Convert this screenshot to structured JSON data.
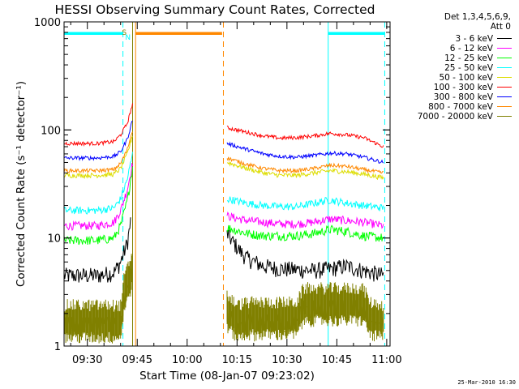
{
  "chart_data": {
    "type": "line",
    "title": "HESSI Observing Summary Count Rates, Corrected",
    "xlabel": "Start Time (08-Jan-07 09:23:02)",
    "ylabel": "Corrected Count Rate (s⁻¹ detector⁻¹)",
    "yscale": "log",
    "xlim_minutes": [
      0,
      98
    ],
    "ylim": [
      1,
      1000
    ],
    "x_ticks": [
      "09:30",
      "09:45",
      "10:00",
      "10:15",
      "10:30",
      "10:45",
      "11:00"
    ],
    "x_tick_minutes": [
      7,
      22,
      37,
      52,
      67,
      82,
      97
    ],
    "y_ticks": [
      {
        "label": "1",
        "value": 1
      },
      {
        "label": "10",
        "value": 10
      },
      {
        "label": "100",
        "value": 100
      },
      {
        "label": "1000",
        "value": 1000
      }
    ],
    "legend_header": [
      "Det 1,3,4,5,6,9,",
      "Att 0"
    ],
    "legend_location": "top-right",
    "gap_minutes": [
      21.5,
      48
    ],
    "series": [
      {
        "name": "3 - 6 keV",
        "color": "#000000",
        "before": {
          "x": [
            0,
            5,
            10,
            15,
            17,
            19,
            20
          ],
          "y": [
            4.5,
            4.5,
            4.5,
            4.8,
            6,
            9,
            14
          ]
        },
        "after": {
          "x": [
            49,
            51,
            53,
            55,
            60,
            65,
            70,
            75,
            80,
            85,
            90,
            96
          ],
          "y": [
            11,
            9,
            7.5,
            6.5,
            5.5,
            5.2,
            5.1,
            5.0,
            5.2,
            5.5,
            5.0,
            4.5
          ]
        }
      },
      {
        "name": "6 - 12 keV",
        "color": "#ff00ff",
        "before": {
          "x": [
            0,
            5,
            10,
            15,
            17,
            19,
            20.6
          ],
          "y": [
            13,
            13,
            13,
            14,
            18,
            28,
            50
          ]
        },
        "after": {
          "x": [
            49,
            55,
            60,
            65,
            70,
            75,
            80,
            85,
            90,
            96
          ],
          "y": [
            16,
            14.5,
            14,
            13.5,
            13.5,
            14,
            15,
            14.5,
            14,
            13
          ]
        }
      },
      {
        "name": "12 - 25 keV",
        "color": "#00ff00",
        "before": {
          "x": [
            0,
            5,
            10,
            15,
            17,
            19,
            20.6
          ],
          "y": [
            9.5,
            9.5,
            9.5,
            10,
            13,
            22,
            45
          ]
        },
        "after": {
          "x": [
            49,
            55,
            60,
            65,
            70,
            75,
            80,
            85,
            90,
            96
          ],
          "y": [
            12.5,
            11,
            10.5,
            10.5,
            10.5,
            11,
            12,
            11.5,
            10.5,
            10
          ]
        }
      },
      {
        "name": "25 - 50 keV",
        "color": "#00ffff",
        "before": {
          "x": [
            0,
            5,
            10,
            15,
            17,
            19,
            20.6
          ],
          "y": [
            18,
            18,
            18,
            19,
            23,
            35,
            60
          ]
        },
        "after": {
          "x": [
            49,
            55,
            60,
            65,
            70,
            75,
            80,
            85,
            90,
            96
          ],
          "y": [
            23,
            21,
            20,
            19.5,
            19.5,
            21,
            22.5,
            21,
            20,
            19
          ]
        }
      },
      {
        "name": "50 - 100 keV",
        "color": "#dddd00",
        "before": {
          "x": [
            0,
            5,
            10,
            15,
            17,
            19,
            20.6
          ],
          "y": [
            38,
            38,
            38,
            39,
            44,
            60,
            90
          ]
        },
        "after": {
          "x": [
            49,
            55,
            60,
            65,
            70,
            75,
            80,
            85,
            90,
            96
          ],
          "y": [
            50,
            44,
            40,
            38,
            38,
            40,
            42,
            41,
            39,
            36
          ]
        }
      },
      {
        "name": "100 - 300 keV",
        "color": "#ff0000",
        "before": {
          "x": [
            0,
            5,
            10,
            15,
            17,
            19,
            20.6
          ],
          "y": [
            75,
            75,
            75,
            78,
            90,
            115,
            175
          ]
        },
        "after": {
          "x": [
            49,
            55,
            60,
            65,
            70,
            75,
            80,
            85,
            90,
            96
          ],
          "y": [
            105,
            95,
            88,
            84,
            85,
            88,
            93,
            90,
            85,
            70
          ]
        }
      },
      {
        "name": "300 - 800 keV",
        "color": "#0000ff",
        "before": {
          "x": [
            0,
            5,
            10,
            15,
            17,
            19,
            20.6
          ],
          "y": [
            55,
            55,
            55,
            57,
            63,
            82,
            125
          ]
        },
        "after": {
          "x": [
            49,
            55,
            60,
            65,
            70,
            75,
            80,
            85,
            90,
            96
          ],
          "y": [
            75,
            66,
            60,
            57,
            56,
            58,
            61,
            60,
            56,
            50
          ]
        }
      },
      {
        "name": "800 - 7000 keV",
        "color": "#ff8800",
        "before": {
          "x": [
            0,
            5,
            10,
            15,
            17,
            19,
            20.6
          ],
          "y": [
            42,
            42,
            42,
            43,
            49,
            66,
            100
          ]
        },
        "after": {
          "x": [
            49,
            55,
            60,
            65,
            70,
            75,
            80,
            85,
            90,
            96
          ],
          "y": [
            55,
            48,
            44,
            42,
            42,
            44,
            47,
            46,
            43,
            40
          ]
        }
      },
      {
        "name": "7000 - 20000 keV",
        "color": "#808000",
        "before": {
          "x": [
            0,
            17,
            18,
            19,
            20.6
          ],
          "y": [
            1.6,
            1.6,
            2.8,
            3.5,
            5
          ]
        },
        "after": {
          "x": [
            49,
            52,
            55,
            70,
            72,
            90,
            92,
            96
          ],
          "y": [
            2.0,
            1.6,
            1.7,
            1.7,
            2.3,
            2.3,
            1.7,
            1.6
          ]
        }
      }
    ],
    "flag_bars": [
      {
        "label": "",
        "color": "#00ffff",
        "start_minute": 0,
        "end_minute": 17.7
      },
      {
        "label": "",
        "color": "#00ffff",
        "start_minute": 79.4,
        "end_minute": 96.4
      },
      {
        "label": "",
        "color": "#ff8800",
        "start_minute": 21.5,
        "end_minute": 47.5
      }
    ],
    "flag_letters": [
      {
        "label": "S",
        "color": "#808000",
        "minute": 18.1
      },
      {
        "label": "N",
        "color": "#00ffff",
        "minute": 19.2
      }
    ],
    "vertical_markers": [
      {
        "minute": 0,
        "color": "#00ffff",
        "style": "solid"
      },
      {
        "minute": 17.7,
        "color": "#00ffff",
        "style": "dashed"
      },
      {
        "minute": 20.6,
        "color": "#808000",
        "style": "solid"
      },
      {
        "minute": 21.5,
        "color": "#ff8800",
        "style": "solid"
      },
      {
        "minute": 47.9,
        "color": "#ff8800",
        "style": "dashed"
      },
      {
        "minute": 79.4,
        "color": "#00ffff",
        "style": "solid"
      },
      {
        "minute": 96.4,
        "color": "#00ffff",
        "style": "dashed"
      }
    ]
  },
  "footer_date": "25-Mar-2010 16:30"
}
